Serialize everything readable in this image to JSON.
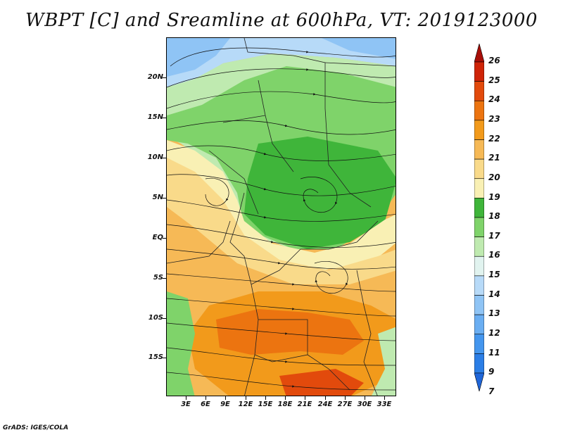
{
  "title": "WBPT [C] and Sreamline at 600hPa, VT: 2019123000",
  "credit": "GrADS: IGES/COLA",
  "lat_labels": [
    "20N",
    "15N",
    "10N",
    "5N",
    "EQ",
    "5S",
    "10S",
    "15S"
  ],
  "lon_labels": [
    "3E",
    "6E",
    "9E",
    "12E",
    "15E",
    "18E",
    "21E",
    "24E",
    "27E",
    "30E",
    "33E"
  ],
  "colorbar": {
    "labels": [
      "7",
      "9",
      "11",
      "12",
      "13",
      "14",
      "15",
      "16",
      "17",
      "18",
      "19",
      "20",
      "21",
      "22",
      "23",
      "24",
      "25",
      "26"
    ],
    "colors": [
      "#1f66d9",
      "#2b7ee6",
      "#4496ee",
      "#6aaef2",
      "#8fc4f5",
      "#b7daf8",
      "#e1f3ef",
      "#bfeab0",
      "#7fd36a",
      "#3fb53a",
      "#f9f0b4",
      "#f9da8a",
      "#f6b956",
      "#f29a1b",
      "#ec7410",
      "#e24a0c",
      "#cf2408",
      "#a80e08"
    ]
  }
}
